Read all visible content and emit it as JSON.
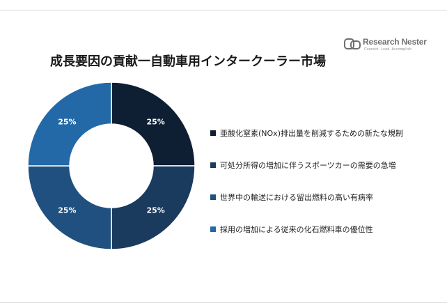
{
  "logo": {
    "name": "Research Nester",
    "tagline": "Connect. Lead. Accomplish"
  },
  "chart_data": {
    "type": "pie",
    "variant": "donut",
    "title": "成長要因の貢献一自動車用インタークーラー市場",
    "categories": [
      "亜酸化窒素(NOx)排出量を削減するための新たな規制",
      "可処分所得の増加に伴うスポーツカーの需要の急増",
      "世界中の輸送における留出燃料の高い有病率",
      "採用の増加による従来の化石燃料車の優位性"
    ],
    "values": [
      25,
      25,
      25,
      25
    ],
    "data_labels": [
      "25%",
      "25%",
      "25%",
      "25%"
    ],
    "colors": [
      "#0e1f33",
      "#1a3a5e",
      "#20507f",
      "#2369a8"
    ],
    "legend_position": "right"
  }
}
